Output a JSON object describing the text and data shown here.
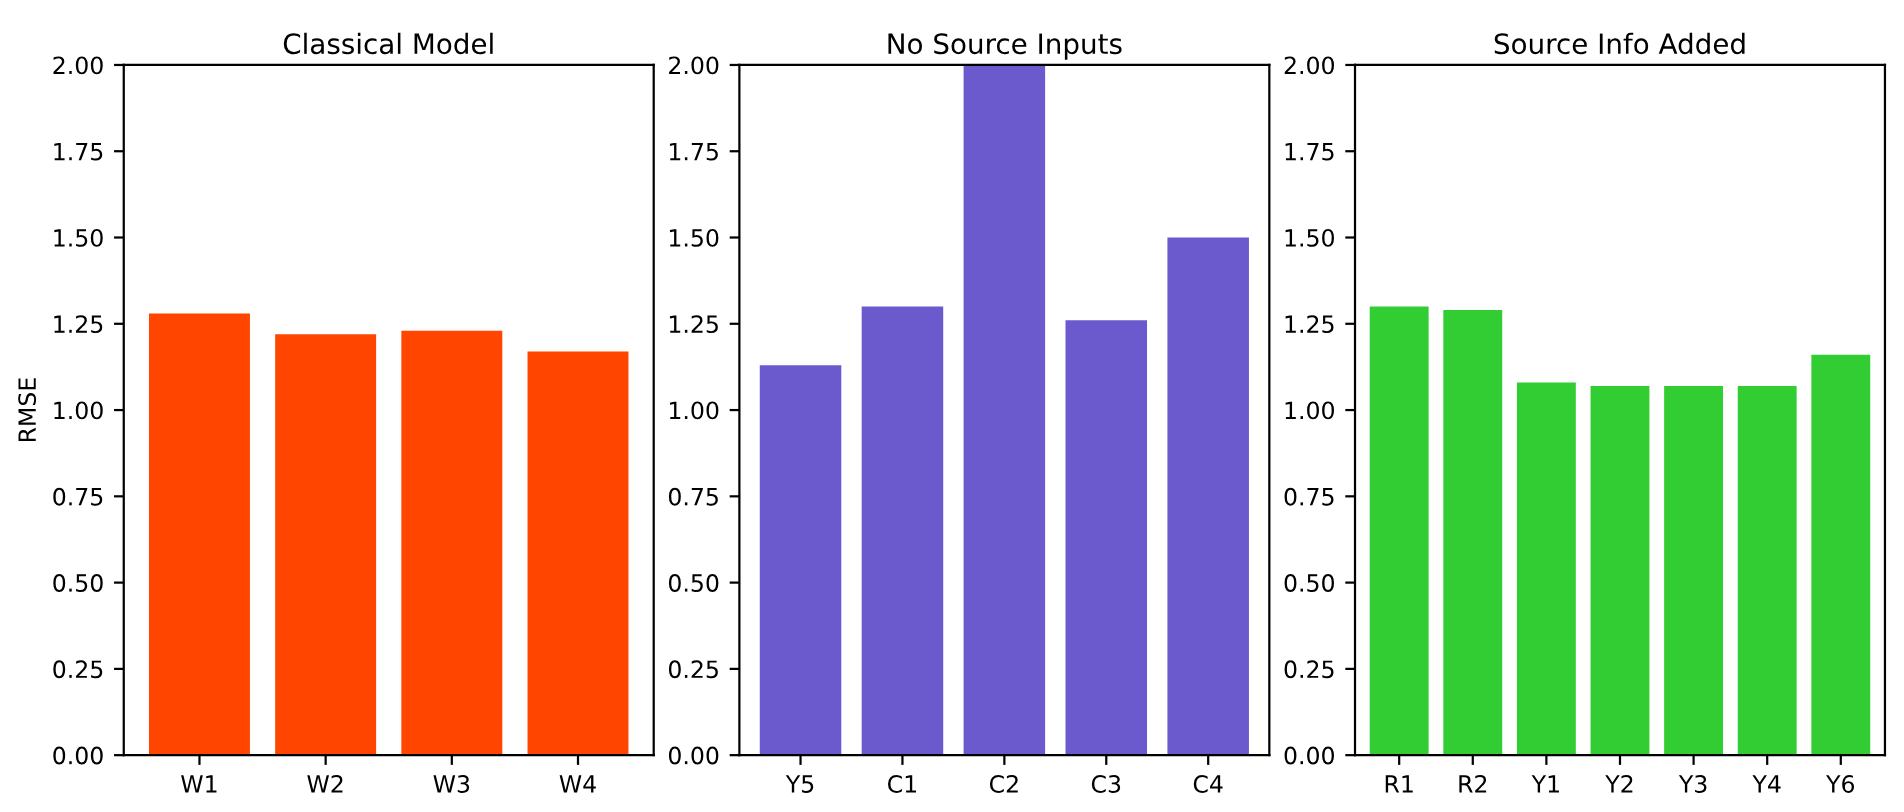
{
  "chart_data": [
    {
      "type": "bar",
      "title": "Classical Model",
      "ylabel": "RMSE",
      "categories": [
        "W1",
        "W2",
        "W3",
        "W4"
      ],
      "values": [
        1.28,
        1.22,
        1.23,
        1.17
      ],
      "color": "#ff4500",
      "ylim": [
        0,
        2
      ],
      "yticks": [
        {
          "value": 0,
          "label": "0.00"
        },
        {
          "value": 0.25,
          "label": "0.25"
        },
        {
          "value": 0.5,
          "label": "0.50"
        },
        {
          "value": 0.75,
          "label": "0.75"
        },
        {
          "value": 1,
          "label": "1.00"
        },
        {
          "value": 1.25,
          "label": "1.25"
        },
        {
          "value": 1.5,
          "label": "1.50"
        },
        {
          "value": 1.75,
          "label": "1.75"
        },
        {
          "value": 2,
          "label": "2.00"
        }
      ],
      "grid": false
    },
    {
      "type": "bar",
      "title": "No Source Inputs",
      "categories": [
        "Y5",
        "C1",
        "C2",
        "C3",
        "C4"
      ],
      "values": [
        1.13,
        1.3,
        2.0,
        1.26,
        1.5
      ],
      "color": "#6a5acd",
      "ylim": [
        0,
        2
      ],
      "yticks": [
        {
          "value": 0,
          "label": "0.00"
        },
        {
          "value": 0.25,
          "label": "0.25"
        },
        {
          "value": 0.5,
          "label": "0.50"
        },
        {
          "value": 0.75,
          "label": "0.75"
        },
        {
          "value": 1,
          "label": "1.00"
        },
        {
          "value": 1.25,
          "label": "1.25"
        },
        {
          "value": 1.5,
          "label": "1.50"
        },
        {
          "value": 1.75,
          "label": "1.75"
        },
        {
          "value": 2,
          "label": "2.00"
        }
      ],
      "grid": false
    },
    {
      "type": "bar",
      "title": "Source Info Added",
      "categories": [
        "R1",
        "R2",
        "Y1",
        "Y2",
        "Y3",
        "Y4",
        "Y6"
      ],
      "values": [
        1.3,
        1.29,
        1.08,
        1.07,
        1.07,
        1.07,
        1.16
      ],
      "color": "#32cd32",
      "ylim": [
        0,
        2
      ],
      "yticks": [
        {
          "value": 0,
          "label": "0.00"
        },
        {
          "value": 0.25,
          "label": "0.25"
        },
        {
          "value": 0.5,
          "label": "0.50"
        },
        {
          "value": 0.75,
          "label": "0.75"
        },
        {
          "value": 1,
          "label": "1.00"
        },
        {
          "value": 1.25,
          "label": "1.25"
        },
        {
          "value": 1.5,
          "label": "1.50"
        },
        {
          "value": 1.75,
          "label": "1.75"
        },
        {
          "value": 2,
          "label": "2.00"
        }
      ],
      "grid": false
    }
  ]
}
